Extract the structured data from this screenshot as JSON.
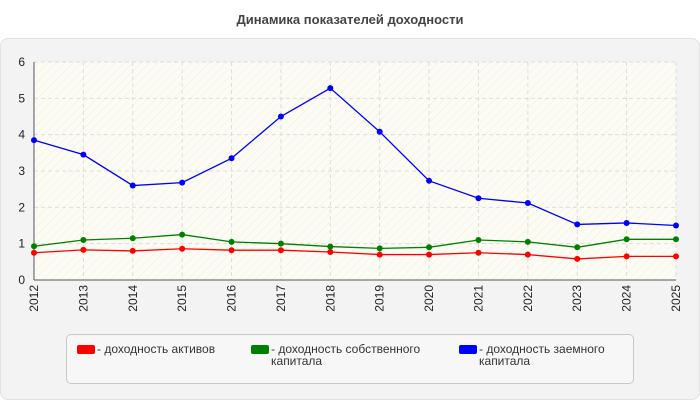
{
  "chart_data": {
    "type": "line",
    "title": "Динамика показателей доходности",
    "categories": [
      "2012",
      "2013",
      "2014",
      "2015",
      "2016",
      "2017",
      "2018",
      "2019",
      "2020",
      "2021",
      "2022",
      "2023",
      "2024",
      "2025"
    ],
    "ylim": [
      0,
      6
    ],
    "yticks": [
      "0",
      "1",
      "2",
      "3",
      "4",
      "5",
      "6"
    ],
    "grid": true,
    "legend_position": "bottom",
    "series": [
      {
        "name": "- доходность активов",
        "color": "#ff0000",
        "values": [
          0.75,
          0.83,
          0.8,
          0.86,
          0.82,
          0.82,
          0.77,
          0.7,
          0.7,
          0.75,
          0.7,
          0.58,
          0.65,
          0.65
        ]
      },
      {
        "name": "- доходность собственного капитала",
        "color": "#008000",
        "values": [
          0.93,
          1.1,
          1.15,
          1.25,
          1.05,
          1.0,
          0.92,
          0.87,
          0.9,
          1.1,
          1.05,
          0.9,
          1.12,
          1.12
        ]
      },
      {
        "name": "- доходность заемного капитала",
        "color": "#0000ff",
        "values": [
          3.85,
          3.45,
          2.6,
          2.68,
          3.35,
          4.5,
          5.28,
          4.08,
          2.73,
          2.25,
          2.12,
          1.53,
          1.57,
          1.5
        ]
      }
    ]
  }
}
